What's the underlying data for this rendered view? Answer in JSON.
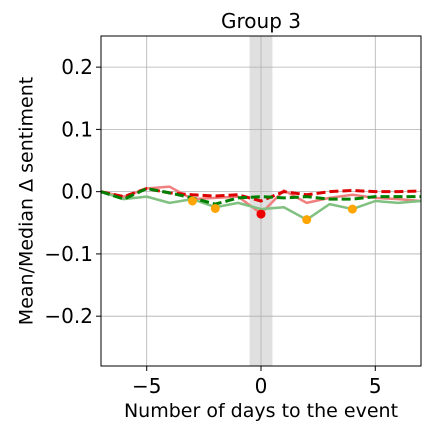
{
  "chart_data": {
    "type": "line",
    "title": "Group 3",
    "xlabel": "Number of days to the event",
    "ylabel": "Mean/Median Δ sentiment",
    "xlim": [
      -7,
      7
    ],
    "ylim": [
      -0.28,
      0.25
    ],
    "xticks": [
      -5,
      0,
      5
    ],
    "xtick_labels": [
      "−5",
      "0",
      "5"
    ],
    "yticks": [
      0.2,
      0.1,
      0.0,
      -0.1,
      -0.2
    ],
    "ytick_labels": [
      "0.2",
      "0.1",
      "0.0",
      "−0.1",
      "−0.2"
    ],
    "grid": true,
    "event_band": [
      -0.5,
      0.5
    ],
    "x": [
      -7,
      -6,
      -5,
      -4,
      -3,
      -2,
      -1,
      0,
      1,
      2,
      3,
      4,
      5,
      6,
      7
    ],
    "series": [
      {
        "values": [
          0.0,
          -0.008,
          0.005,
          0.008,
          -0.012,
          -0.01,
          -0.008,
          -0.035,
          0.002,
          -0.018,
          -0.01,
          -0.005,
          -0.01,
          -0.012,
          -0.015
        ],
        "color": "#f08080",
        "style": "solid"
      },
      {
        "values": [
          0.0,
          -0.012,
          -0.008,
          -0.018,
          -0.012,
          -0.025,
          -0.018,
          -0.028,
          -0.025,
          -0.045,
          -0.02,
          -0.028,
          -0.015,
          -0.018,
          -0.015
        ],
        "color": "#80c080",
        "style": "solid"
      },
      {
        "values": [
          0.0,
          -0.008,
          0.005,
          -0.002,
          -0.005,
          -0.007,
          -0.005,
          -0.015,
          0.0,
          -0.005,
          0.0,
          0.002,
          0.0,
          0.0,
          0.001
        ],
        "color": "#dd0000",
        "style": "dashed"
      },
      {
        "values": [
          0.0,
          -0.012,
          0.005,
          -0.002,
          -0.01,
          -0.02,
          -0.01,
          -0.008,
          -0.01,
          -0.008,
          -0.012,
          -0.012,
          -0.008,
          -0.008,
          -0.008
        ],
        "color": "#008000",
        "style": "dashed"
      }
    ],
    "markers": [
      {
        "x": -3,
        "y": -0.015,
        "color": "#ffa500"
      },
      {
        "x": -2,
        "y": -0.027,
        "color": "#ffa500"
      },
      {
        "x": 0,
        "y": -0.036,
        "color": "#ee0000"
      },
      {
        "x": 2,
        "y": -0.045,
        "color": "#ffa500"
      },
      {
        "x": 4,
        "y": -0.028,
        "color": "#ffa500"
      }
    ]
  }
}
